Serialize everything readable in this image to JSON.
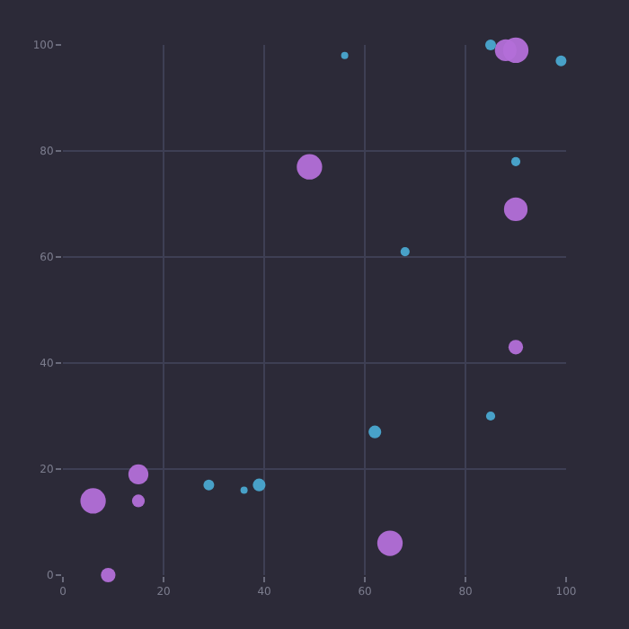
{
  "chart_data": {
    "type": "bubble",
    "xlim": [
      0,
      100
    ],
    "ylim": [
      0,
      100
    ],
    "xticks": [
      0,
      20,
      40,
      60,
      80,
      100
    ],
    "yticks": [
      0,
      20,
      40,
      60,
      80,
      100
    ],
    "grid": true,
    "series": [
      {
        "color": "#b36fd8",
        "x": [
          49,
          88,
          90,
          90,
          90,
          15,
          6,
          15,
          9,
          65
        ],
        "values": [
          77,
          99,
          99,
          69,
          43,
          19,
          14,
          14,
          0,
          6
        ],
        "sizes": [
          1,
          0.73,
          1,
          0.86,
          0.33,
          0.62,
          1,
          0.25,
          0.33,
          1
        ]
      },
      {
        "color": "#4aa8d0",
        "x": [
          56,
          85,
          99,
          90,
          68,
          62,
          85,
          29,
          36,
          39
        ],
        "values": [
          98,
          100,
          97,
          78,
          61,
          27,
          30,
          17,
          16,
          17
        ],
        "sizes": [
          0.08,
          0.18,
          0.18,
          0.13,
          0.13,
          0.25,
          0.13,
          0.18,
          0.08,
          0.25
        ]
      }
    ]
  }
}
